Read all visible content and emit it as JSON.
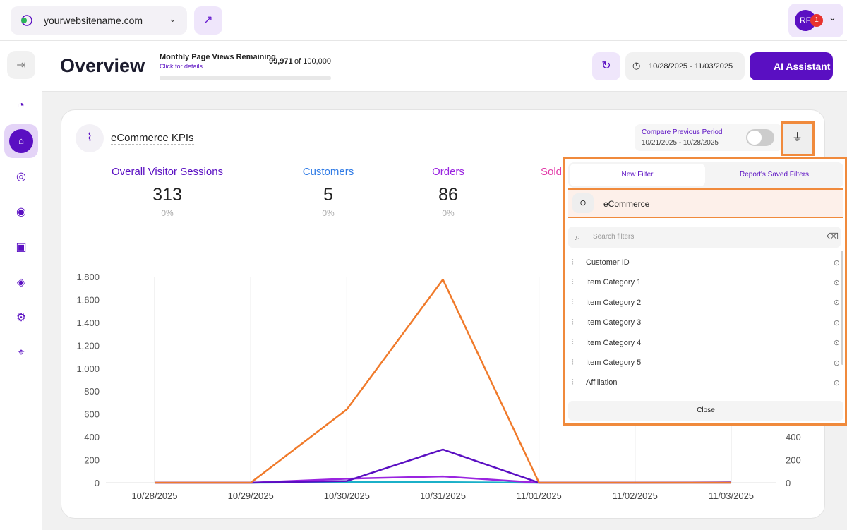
{
  "header": {
    "site": "yourwebsitename.com",
    "avatar": "RF",
    "notifications": "1"
  },
  "page": {
    "title": "Overview",
    "quota_label": "Monthly Page Views Remaining",
    "quota_link": "Click for details",
    "quota_used": "99,971",
    "quota_total": "of 100,000",
    "date_range": "10/28/2025 - 11/03/2025",
    "assistant": "AI Assistant"
  },
  "report": {
    "title": "eCommerce KPIs",
    "compare_label": "Compare Previous Period",
    "compare_range": "10/21/2025 - 10/28/2025"
  },
  "kpis": [
    {
      "label": "Overall Visitor Sessions",
      "value": 313,
      "change": "0%",
      "color": "#5a0fc2"
    },
    {
      "label": "Customers",
      "value": 5,
      "change": "0%",
      "color": "#2f7be6"
    },
    {
      "label": "Orders",
      "value": 86,
      "change": "0%",
      "color": "#9a24e0"
    },
    {
      "label": "Sold",
      "color": "#e23aa8"
    }
  ],
  "filter_panel": {
    "tabs": [
      "New Filter",
      "Report's Saved Filters"
    ],
    "group": "eCommerce",
    "search_placeholder": "Search filters",
    "items": [
      "Customer ID",
      "Item Category 1",
      "Item Category 2",
      "Item Category 3",
      "Item Category 4",
      "Item Category 5",
      "Affiliation"
    ],
    "close": "Close"
  },
  "chart_data": {
    "type": "line",
    "categories": [
      "10/28/2025",
      "10/29/2025",
      "10/30/2025",
      "10/31/2025",
      "11/01/2025",
      "11/02/2025",
      "11/03/2025"
    ],
    "series": [
      {
        "color": "#f07a2a",
        "values": [
          0,
          0,
          640,
          1775,
          0,
          0,
          0
        ]
      },
      {
        "color": "#5a0fc2",
        "values": [
          0,
          0,
          15,
          290,
          0,
          0,
          3
        ]
      },
      {
        "color": "#9a24e0",
        "values": [
          0,
          0,
          35,
          55,
          0,
          0,
          0
        ]
      },
      {
        "color": "#1bb0c8",
        "values": [
          0,
          0,
          5,
          5,
          0,
          0,
          0
        ]
      }
    ],
    "ylim": [
      0,
      1800
    ],
    "yticks": [
      0,
      200,
      400,
      600,
      800,
      {
        "value": 1000,
        "label": "1,000"
      },
      {
        "value": 1200,
        "label": "1,200"
      },
      {
        "value": 1400,
        "label": "1,400"
      },
      {
        "value": 1600,
        "label": "1,600"
      },
      {
        "value": 1800,
        "label": "1,800"
      }
    ],
    "y2lim": [
      0,
      1800
    ],
    "y2ticks": [
      0,
      200,
      400
    ],
    "grid": "x"
  }
}
